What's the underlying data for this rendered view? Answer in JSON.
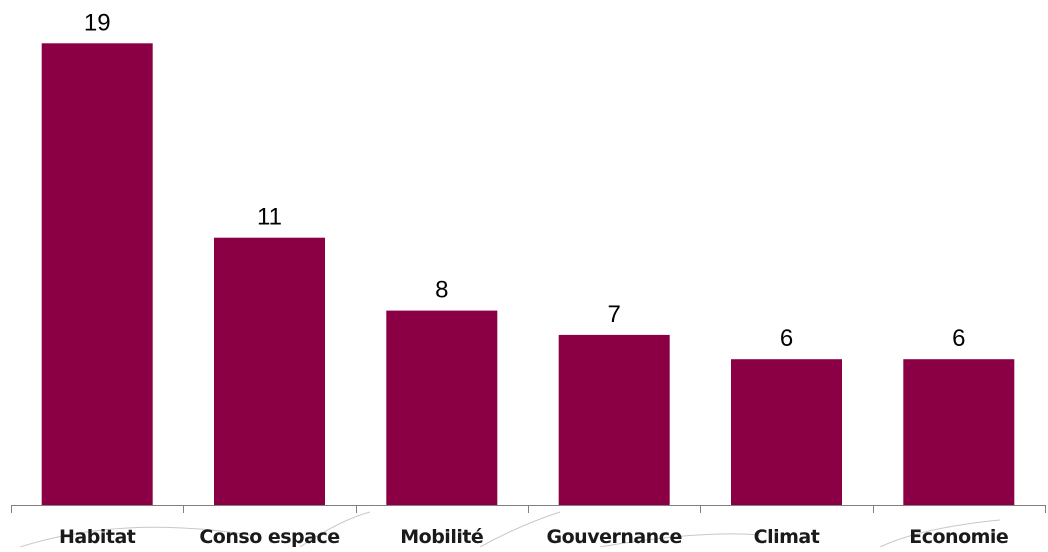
{
  "colors": {
    "bar": "#8B0045",
    "axis": "#808080"
  },
  "chart_data": {
    "type": "bar",
    "categories": [
      "Habitat",
      "Conso espace",
      "Mobilité",
      "Gouvernance",
      "Climat",
      "Economie"
    ],
    "values": [
      19,
      11,
      8,
      7,
      6,
      6
    ],
    "value_labels": [
      "19",
      "11",
      "8",
      "7",
      "6",
      "6"
    ],
    "title": "",
    "xlabel": "",
    "ylabel": "",
    "ylim": [
      0,
      20
    ],
    "grid": false,
    "legend": "none",
    "data_labels": "outside-end"
  }
}
